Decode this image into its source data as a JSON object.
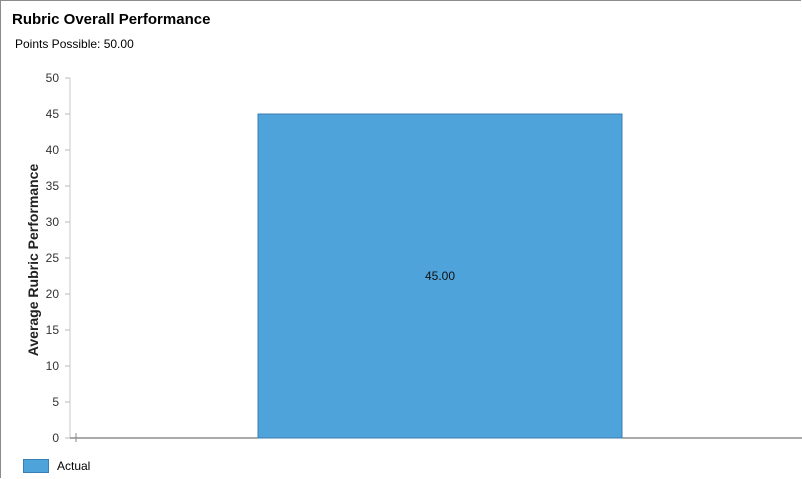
{
  "chart_data": {
    "type": "bar",
    "title": "Rubric Overall Performance",
    "subtitle": "Points Possible: 50.00",
    "ylabel": "Average Rubric Performance",
    "xlabel": "",
    "ylim": [
      0,
      50
    ],
    "yticks": [
      0,
      5,
      10,
      15,
      20,
      25,
      30,
      35,
      40,
      45,
      50
    ],
    "categories": [
      ""
    ],
    "series": [
      {
        "name": "Actual",
        "values": [
          45.0
        ],
        "labels": [
          "45.00"
        ],
        "color": "#4fa3db",
        "border_color": "#3a7eb3"
      }
    ],
    "legend_position": "bottom-left",
    "grid": false
  }
}
